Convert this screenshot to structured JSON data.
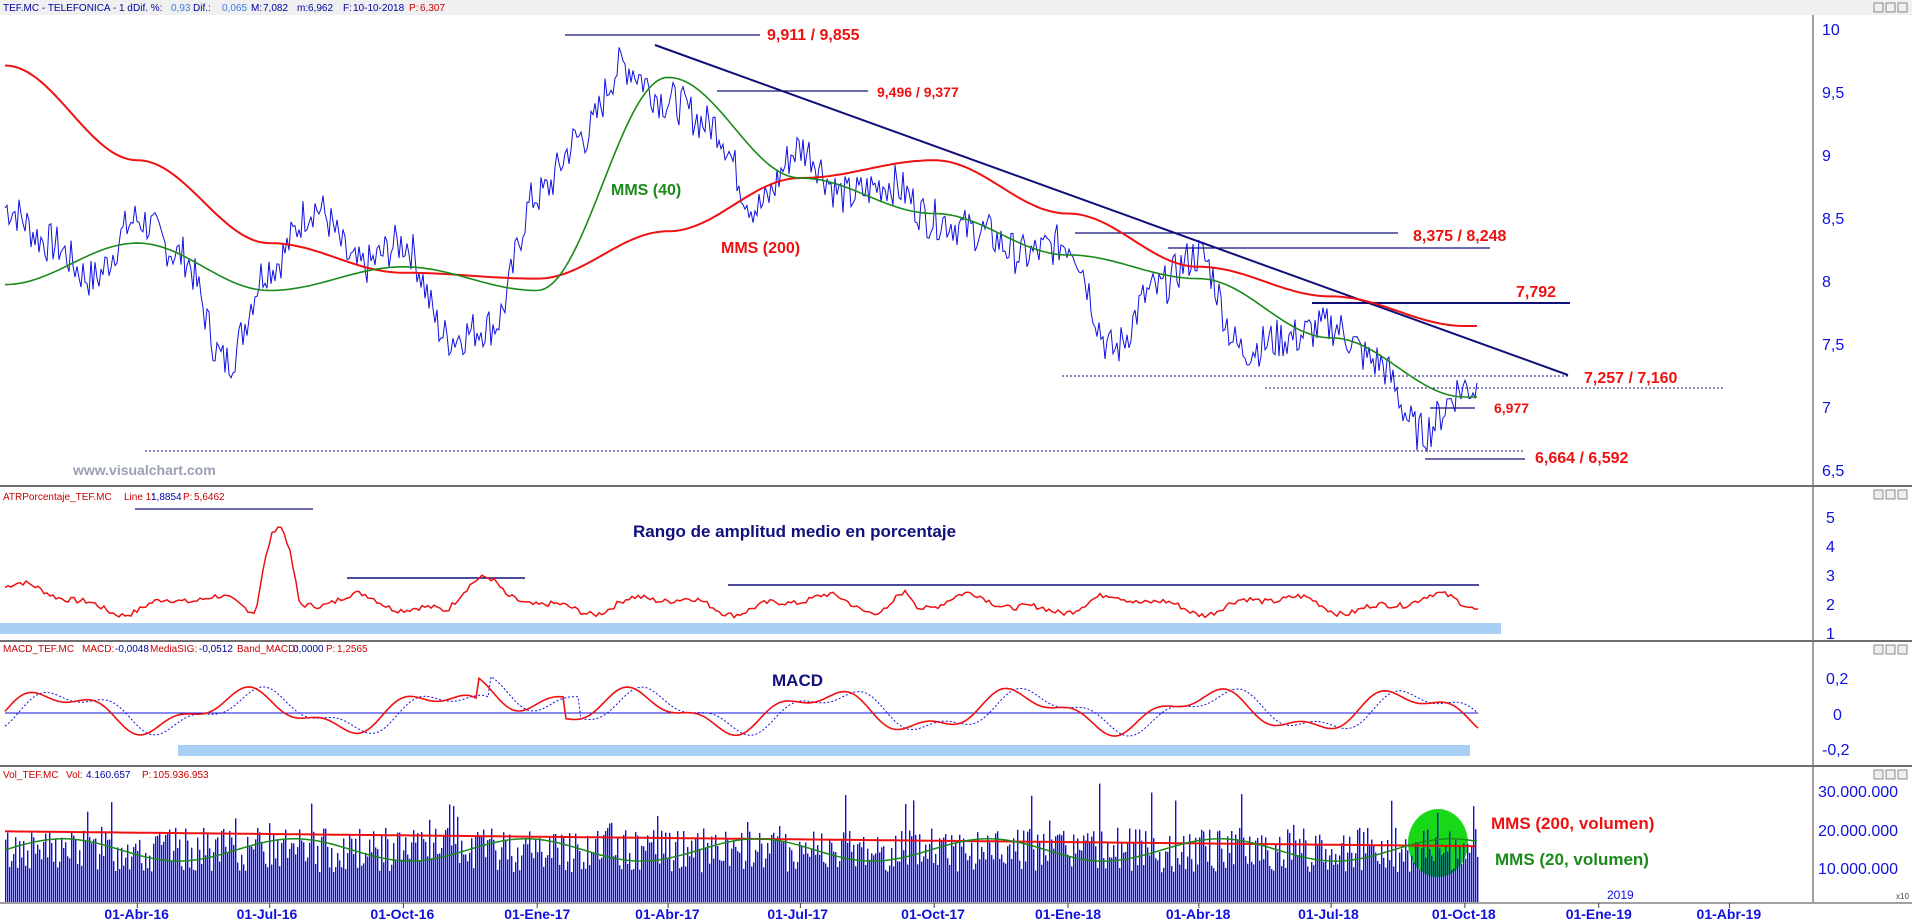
{
  "colors": {
    "price": "#1010e0",
    "mms40": "#1a8a1a",
    "mms200": "#ee1111",
    "trend": "#10107a",
    "annot_red": "#ee1111",
    "annot_green": "#1a8a1a",
    "annot_blue": "#10107a",
    "band": "#a8d0f4",
    "volume": "#1010e0",
    "vol_highlight": "#18d818",
    "axis_text": "#1010e0",
    "header_red": "#cc0000",
    "header_blue": "#0000a0"
  },
  "watermark": "www.visualchart.com",
  "panels": {
    "price": {
      "header": {
        "symbol": "TEF.MC - TELEFONICA - 1 d",
        "dif_pct_label": "Dif. %:",
        "dif_pct": "0,93",
        "dif_label": "Dif.:",
        "dif": "0,065",
        "max_label": "M:",
        "max": "7,082",
        "min_label": "m:",
        "min": "6,962",
        "date_label": "F:",
        "date": "10-10-2018",
        "p_label": "P:",
        "p": "6,307"
      },
      "annotations": {
        "res1": "9,911 / 9,855",
        "res2": "9,496 / 9,377",
        "res3": "8,375 / 8,248",
        "res4": "7,792",
        "sup1": "7,257 / 7,160",
        "sup2": "6,977",
        "sup3": "6,664 / 6,592",
        "mms40": "MMS (40)",
        "mms200": "MMS (200)"
      },
      "ticks": [
        "10",
        "9,5",
        "9",
        "8,5",
        "8",
        "7,5",
        "7",
        "6,5"
      ]
    },
    "atr": {
      "header": {
        "name": "ATRPorcentaje_TEF.MC",
        "line_label": "Line 1:",
        "line": "1,8854",
        "p_label": "P:",
        "p": "5,6462"
      },
      "title": "Rango de amplitud medio en porcentaje",
      "ticks": [
        "5",
        "4",
        "3",
        "2",
        "1"
      ]
    },
    "macd": {
      "header": {
        "name": "MACD_TEF.MC",
        "macd_label": "MACD:",
        "macd": "-0,0048",
        "sig_label": "MediaSIG:",
        "sig": "-0,0512",
        "band_label": "Band_MACD:",
        "band": "0,0000",
        "p_label": "P:",
        "p": "1,2565"
      },
      "title": "MACD",
      "ticks": [
        "0,2",
        "0",
        "-0,2"
      ]
    },
    "volume": {
      "header": {
        "name": "Vol_TEF.MC",
        "vol_label": "Vol:",
        "vol": "4.160.657",
        "p_label": "P:",
        "p": "105.936.953"
      },
      "labels": {
        "mms200": "MMS (200, volumen)",
        "mms20": "MMS (20, volumen)"
      },
      "ticks": [
        "30.000.000",
        "20.000.000",
        "10.000.000"
      ],
      "corner_tag": "x10"
    }
  },
  "x_axis": {
    "labels": [
      "01-Abr-16",
      "01-Jul-16",
      "01-Oct-16",
      "01-Ene-17",
      "01-Abr-17",
      "01-Jul-17",
      "01-Oct-17",
      "01-Ene-18",
      "01-Abr-18",
      "01-Jul-18",
      "01-Oct-18",
      "01-Ene-19",
      "01-Abr-19"
    ],
    "year_label": "2019"
  },
  "chart_data": {
    "type": "line",
    "title": "TEF.MC - TELEFONICA - 1 d",
    "x_range": [
      "2016-01-01",
      "2018-10-10"
    ],
    "series": [
      {
        "name": "TEF.MC",
        "x": [
          "2016-01",
          "2016-02",
          "2016-03",
          "2016-04",
          "2016-05",
          "2016-06",
          "2016-07",
          "2016-08",
          "2016-09",
          "2016-10",
          "2016-11",
          "2016-12",
          "2017-01",
          "2017-02",
          "2017-03",
          "2017-04",
          "2017-05",
          "2017-06",
          "2017-07",
          "2017-08",
          "2017-09",
          "2017-10",
          "2017-11",
          "2017-12",
          "2018-01",
          "2018-02",
          "2018-03",
          "2018-04",
          "2018-05",
          "2018-06",
          "2018-07",
          "2018-08",
          "2018-09",
          "2018-10"
        ],
        "y": [
          8.6,
          8.3,
          8.0,
          8.5,
          8.2,
          7.3,
          8.1,
          8.6,
          8.1,
          8.3,
          7.5,
          7.6,
          8.7,
          9.2,
          9.8,
          9.5,
          9.3,
          8.6,
          9.1,
          8.7,
          8.8,
          8.5,
          8.4,
          8.2,
          8.3,
          7.4,
          7.9,
          8.2,
          7.4,
          7.5,
          7.6,
          7.3,
          6.7,
          7.08
        ]
      },
      {
        "name": "MMS (40)",
        "x": [
          "2016-01",
          "2016-04",
          "2016-07",
          "2016-10",
          "2017-01",
          "2017-04",
          "2017-07",
          "2017-10",
          "2018-01",
          "2018-04",
          "2018-07",
          "2018-10"
        ],
        "y": [
          7.95,
          8.3,
          7.9,
          8.1,
          7.9,
          9.7,
          8.85,
          8.55,
          8.2,
          8.0,
          7.5,
          7.0
        ]
      },
      {
        "name": "MMS (200)",
        "x": [
          "2016-01",
          "2016-04",
          "2016-07",
          "2016-10",
          "2017-01",
          "2017-04",
          "2017-07",
          "2017-10",
          "2018-01",
          "2018-04",
          "2018-07",
          "2018-10"
        ],
        "y": [
          9.8,
          9.0,
          8.3,
          8.05,
          8.0,
          8.4,
          8.85,
          9.0,
          8.55,
          8.1,
          7.85,
          7.6
        ]
      }
    ],
    "levels": [
      9.911,
      9.855,
      9.496,
      9.377,
      8.375,
      8.248,
      7.792,
      7.257,
      7.16,
      6.977,
      6.664,
      6.592
    ],
    "ylim": [
      6.35,
      10.1
    ],
    "indicators": {
      "atr_pct": {
        "last": 1.8854,
        "ylim": [
          1,
          5.2
        ]
      },
      "macd": {
        "macd": -0.0048,
        "signal": -0.0512,
        "band": 0.0,
        "ylim": [
          -0.28,
          0.3
        ]
      },
      "volume": {
        "last": 4160657,
        "ylim": [
          0,
          32000000
        ],
        "mms200_level": 15000000,
        "mms20_level": 14000000
      }
    }
  }
}
